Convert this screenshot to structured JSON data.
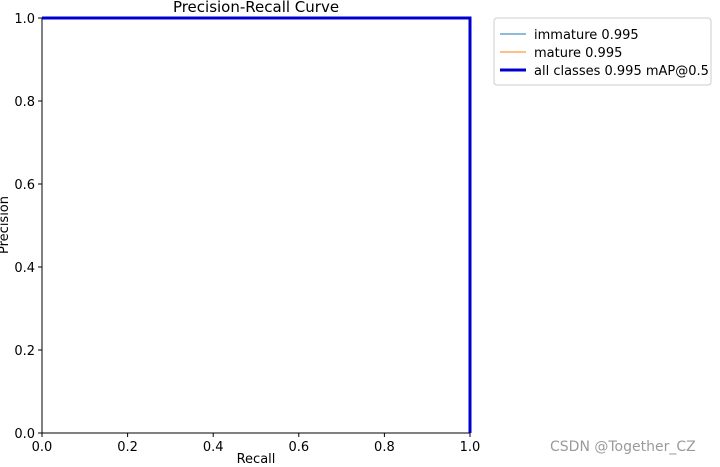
{
  "chart_data": {
    "type": "line",
    "title": "Precision-Recall Curve",
    "xlabel": "Recall",
    "ylabel": "Precision",
    "xlim": [
      0.0,
      1.0
    ],
    "ylim": [
      0.0,
      1.0
    ],
    "xticks": [
      "0.0",
      "0.2",
      "0.4",
      "0.6",
      "0.8",
      "1.0"
    ],
    "yticks": [
      "0.0",
      "0.2",
      "0.4",
      "0.6",
      "0.8",
      "1.0"
    ],
    "grid": false,
    "legend_position": "outside-top-right",
    "series": [
      {
        "name": "immature 0.995",
        "color": "#1f77b4",
        "linewidth": "thin",
        "points": [
          [
            0.0,
            1.0
          ],
          [
            1.0,
            1.0
          ],
          [
            1.0,
            0.0
          ]
        ]
      },
      {
        "name": "mature 0.995",
        "color": "#ff7f0e",
        "linewidth": "thin",
        "points": [
          [
            0.0,
            1.0
          ],
          [
            1.0,
            1.0
          ],
          [
            1.0,
            0.0
          ]
        ]
      },
      {
        "name": "all classes 0.995 mAP@0.5",
        "color": "#0000cc",
        "linewidth": "thick",
        "points": [
          [
            0.0,
            1.0
          ],
          [
            1.0,
            1.0
          ],
          [
            1.0,
            0.0
          ]
        ]
      }
    ]
  },
  "watermark": "CSDN @Together_CZ"
}
